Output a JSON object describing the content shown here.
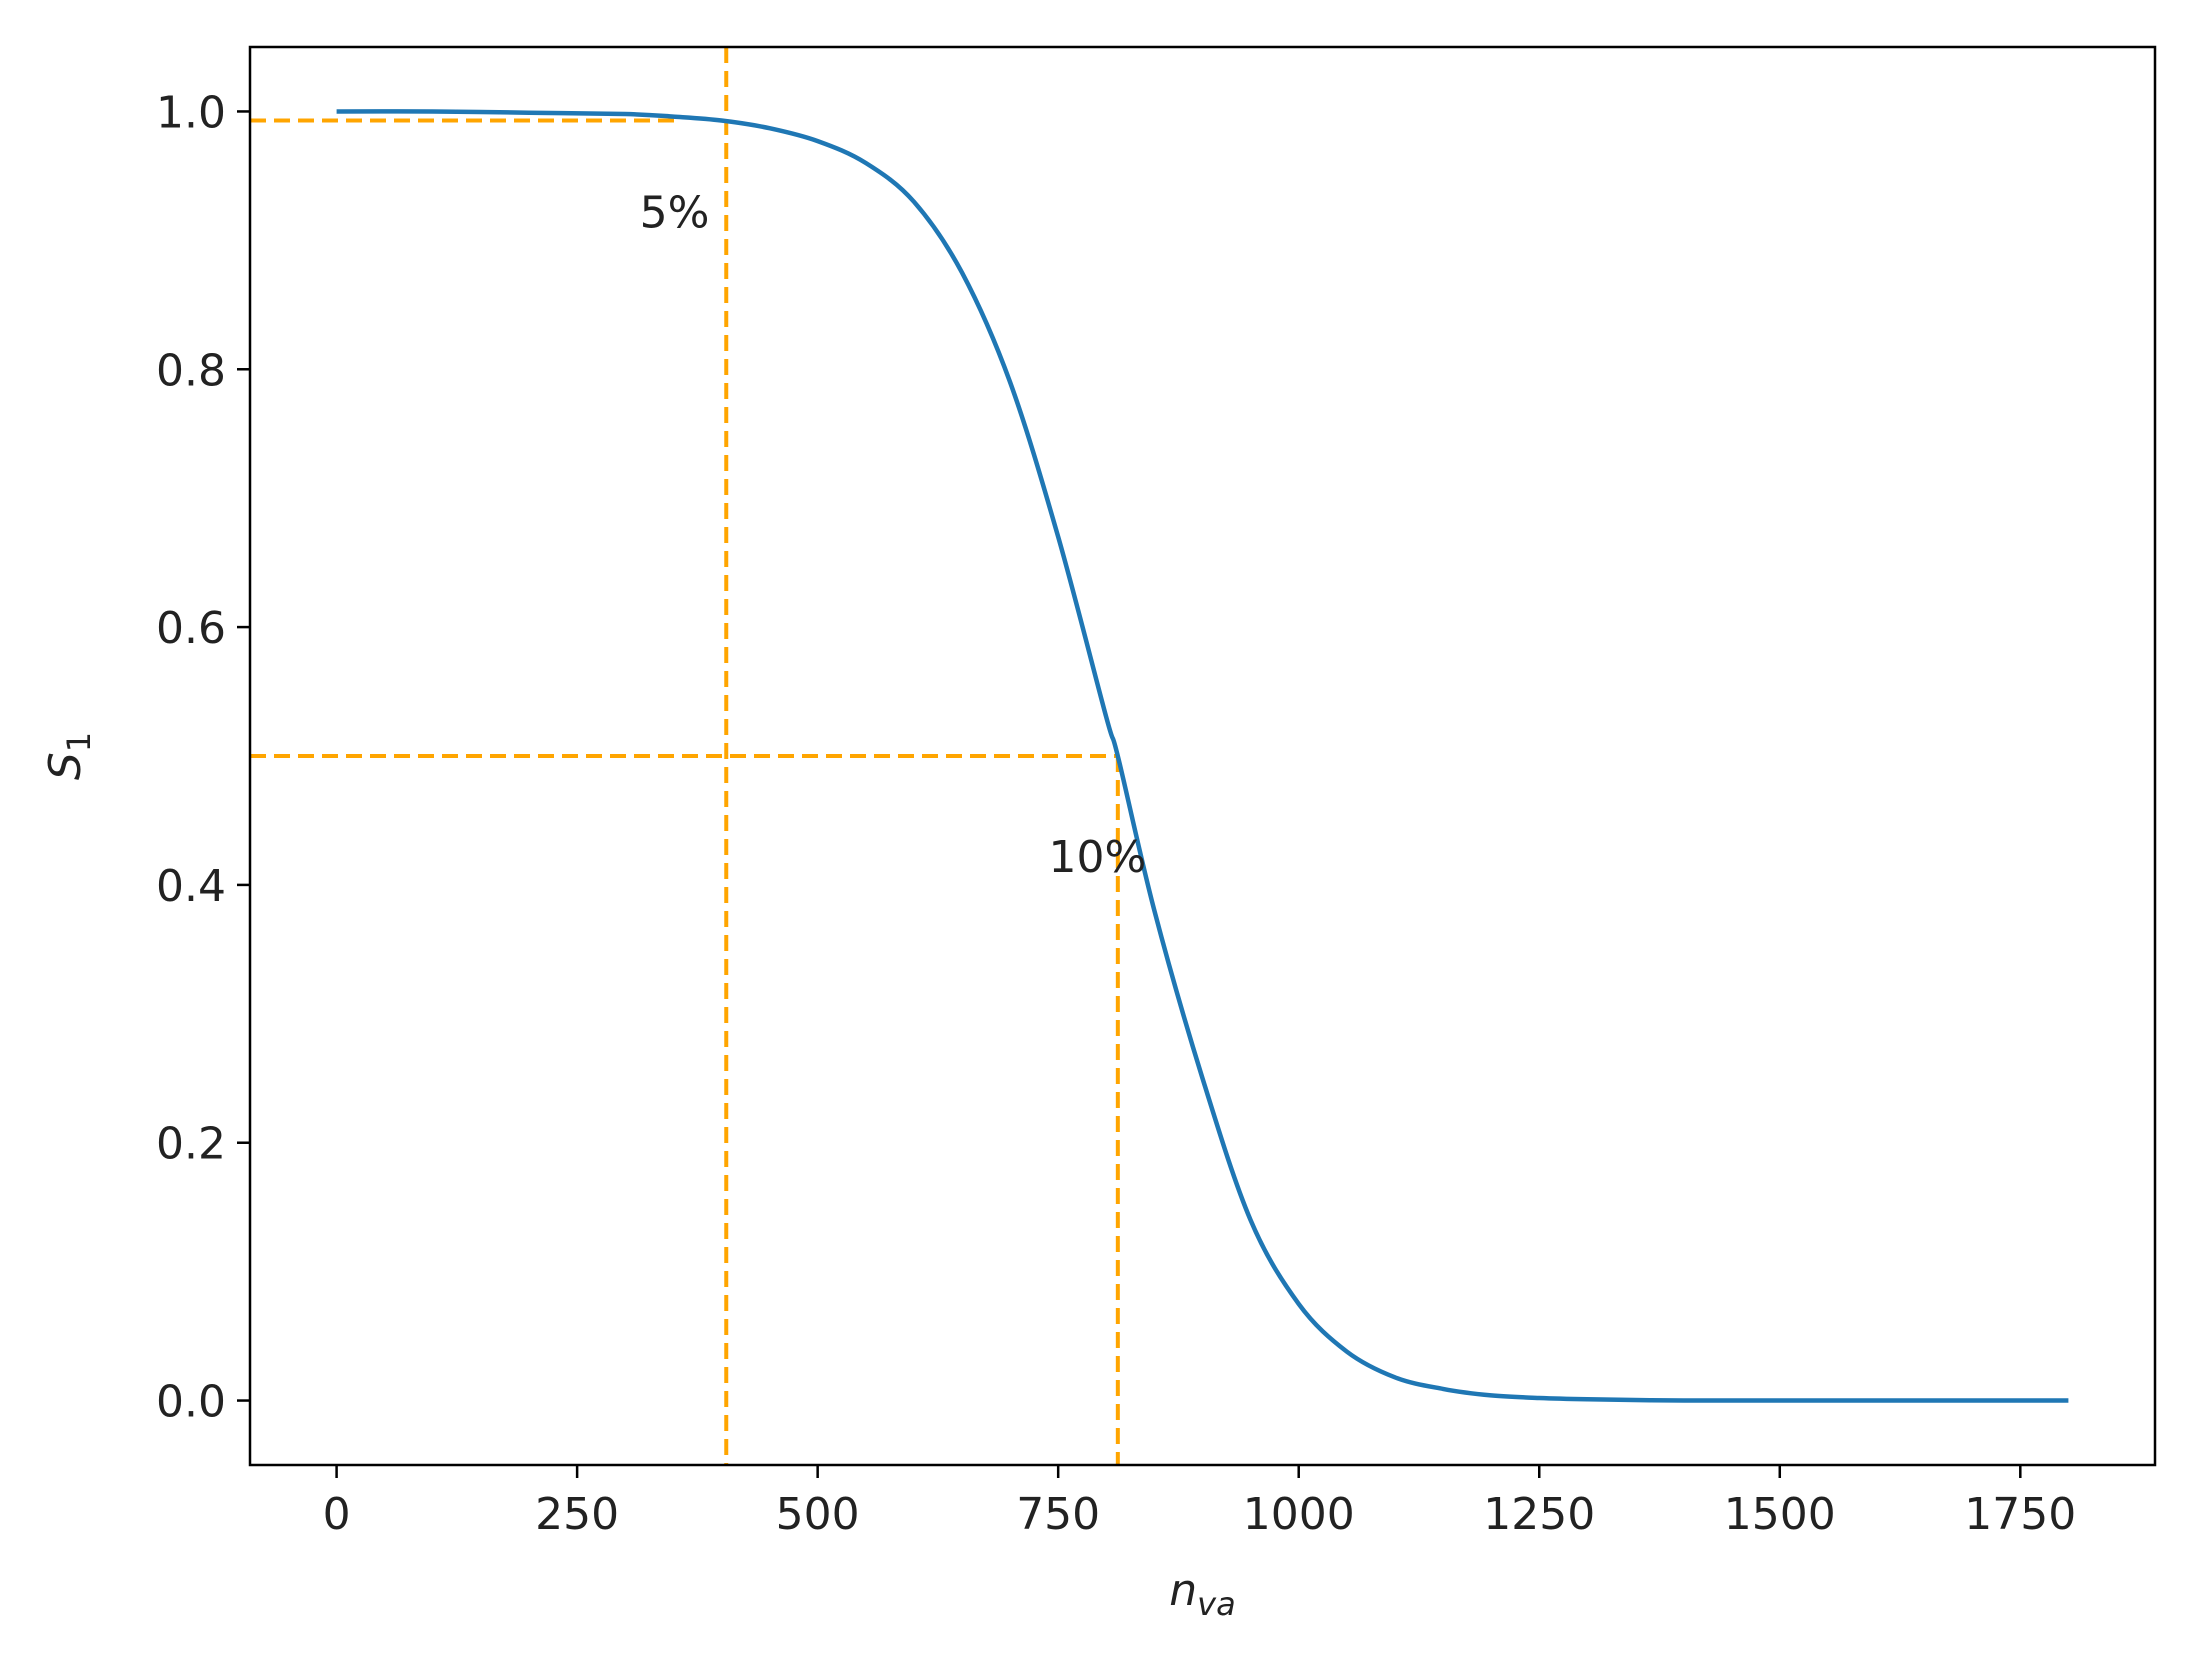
{
  "chart_data": {
    "type": "line",
    "xlabel": {
      "main": "n",
      "sub": "va"
    },
    "ylabel": {
      "main": "S",
      "sub": "1"
    },
    "xlim": [
      -90,
      1890
    ],
    "ylim": [
      -0.05,
      1.05
    ],
    "xticks": [
      0,
      250,
      500,
      750,
      1000,
      1250,
      1500,
      1750
    ],
    "xtick_labels": [
      "0",
      "250",
      "500",
      "750",
      "1000",
      "1250",
      "1500",
      "1750"
    ],
    "yticks": [
      0.0,
      0.2,
      0.4,
      0.6,
      0.8,
      1.0
    ],
    "ytick_labels": [
      "0.0",
      "0.2",
      "0.4",
      "0.6",
      "0.8",
      "1.0"
    ],
    "grid": false,
    "series": [
      {
        "color": "#1f77b4",
        "x": [
          0,
          100,
          200,
          300,
          350,
          400,
          450,
          500,
          550,
          600,
          650,
          700,
          750,
          800,
          812,
          850,
          900,
          950,
          1000,
          1050,
          1100,
          1150,
          1200,
          1250,
          1300,
          1400,
          1500,
          1600,
          1700,
          1800
        ],
        "y": [
          1.0,
          1.0,
          0.999,
          0.998,
          0.996,
          0.993,
          0.987,
          0.977,
          0.96,
          0.93,
          0.875,
          0.79,
          0.67,
          0.53,
          0.5,
          0.38,
          0.25,
          0.14,
          0.075,
          0.038,
          0.018,
          0.009,
          0.004,
          0.002,
          0.001,
          0.0,
          0.0,
          0.0,
          0.0,
          0.0
        ]
      }
    ],
    "reference_lines": {
      "color": "#ffa500",
      "horizontal": [
        {
          "y": 0.993,
          "x_from": -90,
          "x_to": 355
        },
        {
          "y": 0.5,
          "x_from": -90,
          "x_to": 812
        }
      ],
      "vertical": [
        {
          "x": 405,
          "y_from": -0.05,
          "y_to": 1.05
        },
        {
          "x": 812,
          "y_from": -0.05,
          "y_to": 0.5
        }
      ]
    },
    "annotations": [
      {
        "text": "5%",
        "x": 315,
        "y": 0.91
      },
      {
        "text": "10%",
        "x": 740,
        "y": 0.41
      }
    ]
  }
}
